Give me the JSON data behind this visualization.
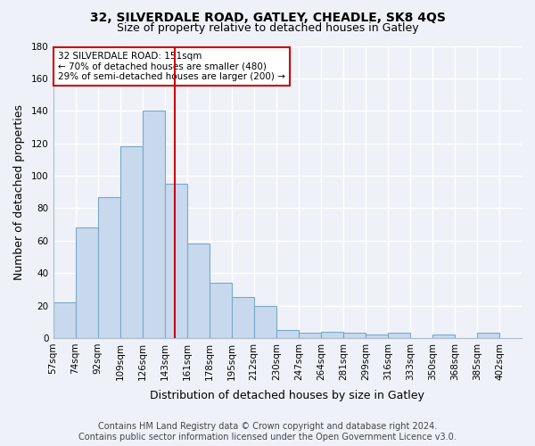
{
  "title": "32, SILVERDALE ROAD, GATLEY, CHEADLE, SK8 4QS",
  "subtitle": "Size of property relative to detached houses in Gatley",
  "xlabel": "Distribution of detached houses by size in Gatley",
  "ylabel": "Number of detached properties",
  "categories": [
    "57sqm",
    "74sqm",
    "92sqm",
    "109sqm",
    "126sqm",
    "143sqm",
    "161sqm",
    "178sqm",
    "195sqm",
    "212sqm",
    "230sqm",
    "247sqm",
    "264sqm",
    "281sqm",
    "299sqm",
    "316sqm",
    "333sqm",
    "350sqm",
    "368sqm",
    "385sqm",
    "402sqm"
  ],
  "values": [
    22,
    68,
    87,
    118,
    140,
    95,
    58,
    34,
    25,
    20,
    5,
    3,
    4,
    3,
    2,
    3,
    0,
    2,
    0,
    3
  ],
  "bar_color": "#c8d9ee",
  "bar_edge_color": "#7ba7c8",
  "vline_color": "#cc0000",
  "ylim": [
    0,
    180
  ],
  "yticks": [
    0,
    20,
    40,
    60,
    80,
    100,
    120,
    140,
    160,
    180
  ],
  "annotation_title": "32 SILVERDALE ROAD: 151sqm",
  "annotation_line1": "← 70% of detached houses are smaller (480)",
  "annotation_line2": "29% of semi-detached houses are larger (200) →",
  "annotation_box_color": "#ffffff",
  "annotation_box_edge": "#cc0000",
  "footer_line1": "Contains HM Land Registry data © Crown copyright and database right 2024.",
  "footer_line2": "Contains public sector information licensed under the Open Government Licence v3.0.",
  "background_color": "#eef2f8",
  "grid_color": "#ffffff",
  "title_fontsize": 10,
  "subtitle_fontsize": 9,
  "axis_label_fontsize": 9,
  "tick_fontsize": 7.5,
  "footer_fontsize": 7
}
